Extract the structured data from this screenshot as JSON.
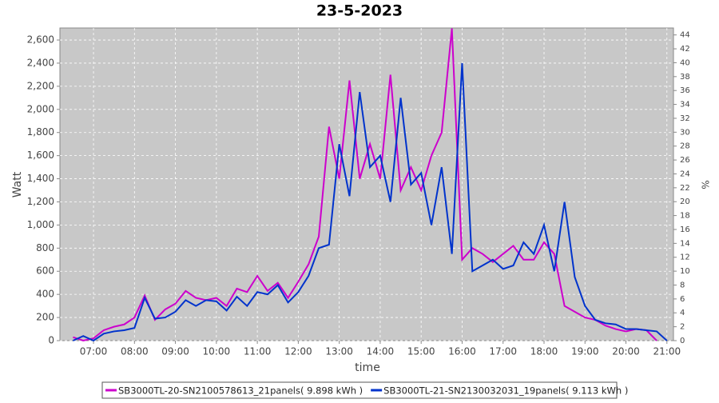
{
  "chart_data": {
    "type": "line",
    "title": "23-5-2023",
    "xlabel": "time",
    "ylabel": "Watt",
    "y2label": "%",
    "x": [
      6.5,
      6.75,
      7.0,
      7.25,
      7.5,
      7.75,
      8.0,
      8.25,
      8.5,
      8.75,
      9.0,
      9.25,
      9.5,
      9.75,
      10.0,
      10.25,
      10.5,
      10.75,
      11.0,
      11.25,
      11.5,
      11.75,
      12.0,
      12.25,
      12.5,
      12.75,
      13.0,
      13.25,
      13.5,
      13.75,
      14.0,
      14.25,
      14.5,
      14.75,
      15.0,
      15.25,
      15.5,
      15.75,
      16.0,
      16.25,
      16.5,
      16.75,
      17.0,
      17.25,
      17.5,
      17.75,
      18.0,
      18.25,
      18.5,
      18.75,
      19.0,
      19.25,
      19.5,
      19.75,
      20.0,
      20.25,
      20.5,
      20.75,
      21.0
    ],
    "series": [
      {
        "name": "SB3000TL-20-SN2100578613_21panels( 9.898 kWh )",
        "color": "#cc00cc",
        "values": [
          30,
          0,
          20,
          90,
          120,
          140,
          200,
          390,
          180,
          270,
          320,
          430,
          370,
          350,
          370,
          300,
          450,
          420,
          560,
          430,
          500,
          370,
          510,
          660,
          900,
          1850,
          1400,
          2250,
          1400,
          1700,
          1400,
          2300,
          1300,
          1500,
          1300,
          1600,
          1800,
          2700,
          700,
          800,
          750,
          680,
          750,
          820,
          700,
          700,
          850,
          750,
          300,
          250,
          200,
          180,
          130,
          100,
          80,
          100,
          90,
          0,
          null
        ]
      },
      {
        "name": "SB3000TL-21-SN2130032031_19panels( 9.113 kWh )",
        "color": "#0033cc",
        "values": [
          0,
          40,
          0,
          60,
          80,
          90,
          110,
          370,
          190,
          200,
          250,
          350,
          300,
          350,
          340,
          260,
          380,
          300,
          420,
          400,
          480,
          330,
          420,
          560,
          800,
          830,
          1700,
          1250,
          2150,
          1500,
          1600,
          1200,
          2100,
          1350,
          1450,
          1000,
          1500,
          750,
          2400,
          600,
          650,
          700,
          620,
          650,
          850,
          750,
          1000,
          600,
          1200,
          550,
          300,
          180,
          150,
          140,
          100,
          100,
          90,
          80,
          0
        ]
      }
    ],
    "xlim": [
      6.18,
      21.16
    ],
    "xticks": [
      {
        "value": 7,
        "label": "07:00"
      },
      {
        "value": 8,
        "label": "08:00"
      },
      {
        "value": 9,
        "label": "09:00"
      },
      {
        "value": 10,
        "label": "10:00"
      },
      {
        "value": 11,
        "label": "11:00"
      },
      {
        "value": 12,
        "label": "12:00"
      },
      {
        "value": 13,
        "label": "13:00"
      },
      {
        "value": 14,
        "label": "14:00"
      },
      {
        "value": 15,
        "label": "15:00"
      },
      {
        "value": 16,
        "label": "16:00"
      },
      {
        "value": 17,
        "label": "17:00"
      },
      {
        "value": 18,
        "label": "18:00"
      },
      {
        "value": 19,
        "label": "19:00"
      },
      {
        "value": 20,
        "label": "20:00"
      },
      {
        "value": 21,
        "label": "21:00"
      }
    ],
    "ylim": [
      0,
      2704
    ],
    "yticks": [
      0,
      200,
      400,
      600,
      800,
      {
        "value": 1000,
        "label": "1,000"
      },
      {
        "value": 1200,
        "label": "1,200"
      },
      {
        "value": 1400,
        "label": "1,400"
      },
      {
        "value": 1600,
        "label": "1,600"
      },
      {
        "value": 1800,
        "label": "1,800"
      },
      {
        "value": 2000,
        "label": "2,000"
      },
      {
        "value": 2200,
        "label": "2,200"
      },
      {
        "value": 2400,
        "label": "2,400"
      },
      {
        "value": 2600,
        "label": "2,600"
      }
    ],
    "y2lim": [
      0,
      45
    ],
    "y2ticks": [
      0,
      2,
      4,
      6,
      8,
      10,
      12,
      14,
      16,
      18,
      20,
      22,
      24,
      26,
      28,
      30,
      32,
      34,
      36,
      38,
      40,
      42,
      44
    ],
    "grid": true
  }
}
